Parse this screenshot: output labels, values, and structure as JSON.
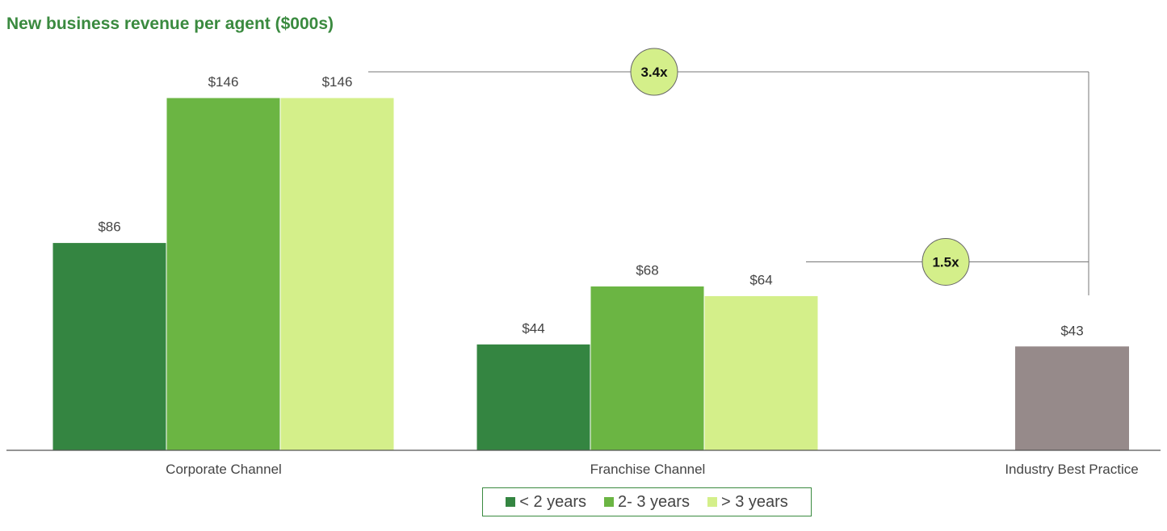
{
  "chart_data": {
    "type": "bar",
    "title": "New business revenue per agent ($000s)",
    "categories": [
      "Corporate Channel",
      "Franchise Channel",
      "Industry Best Practice"
    ],
    "series": [
      {
        "name": "< 2 years",
        "color": "#348541",
        "values": [
          86,
          44,
          null
        ],
        "labels": [
          "$86",
          "$44",
          ""
        ]
      },
      {
        "name": "2- 3 years",
        "color": "#6bb543",
        "values": [
          146,
          68,
          null
        ],
        "labels": [
          "$146",
          "$68",
          ""
        ]
      },
      {
        "name": "> 3 years",
        "color": "#d4ef8a",
        "values": [
          146,
          64,
          null
        ],
        "labels": [
          "$146",
          "$64",
          ""
        ]
      }
    ],
    "benchmark": {
      "category": "Industry Best Practice",
      "value": 43,
      "label": "$43",
      "color": "#968a8a"
    },
    "annotations": [
      {
        "text": "3.4x",
        "compares": [
          "> 3 years Corporate Channel",
          "Industry Best Practice"
        ]
      },
      {
        "text": "1.5x",
        "compares": [
          "> 3 years Franchise Channel",
          "Industry Best Practice"
        ]
      }
    ],
    "ylim": [
      0,
      146
    ],
    "grid": false,
    "legend_position": "bottom"
  }
}
